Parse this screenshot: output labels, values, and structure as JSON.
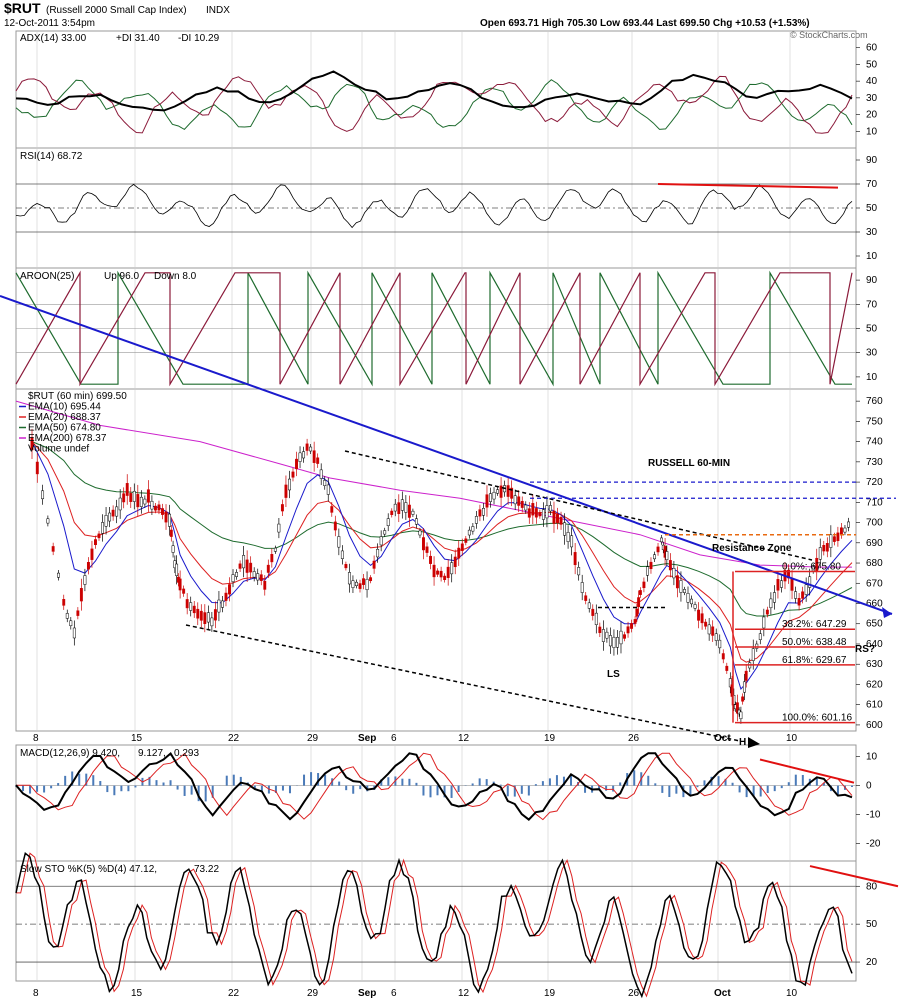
{
  "header": {
    "symbol": "$RUT",
    "name": "(Russell 2000 Small Cap Index)",
    "exchange": "INDX",
    "datetime": "12-Oct-2011 3:54pm",
    "ohlc": "Open 693.71  High 705.30  Low 693.44  Last 699.50  Chg +10.53 (+1.53%)",
    "watermark": "© StockCharts.com"
  },
  "colors": {
    "adx": "#000000",
    "plus_di": "#1e6b2e",
    "minus_di": "#8b1a3a",
    "ema10": "#1a1acc",
    "ema20": "#dd2222",
    "ema50": "#1e6b2e",
    "ema200": "#cc22cc",
    "trend": "#1a1acc",
    "fib": "#dd2222",
    "resistance": "#e86a10",
    "macd_hist": "#4a7ab8",
    "signal": "#dd2222"
  },
  "x_axis": {
    "labels": [
      "8",
      "15",
      "22",
      "29",
      "Sep",
      "6",
      "12",
      "19",
      "26",
      "Oct",
      "10"
    ],
    "bold": [
      "Sep",
      "Oct"
    ]
  },
  "panels": {
    "adx": {
      "legend": [
        "ADX(14) 33.00",
        "+DI 31.40",
        "-DI 10.29"
      ],
      "ticks": [
        "60",
        "50",
        "40",
        "30",
        "20",
        "10"
      ]
    },
    "rsi": {
      "legend": "RSI(14) 68.72",
      "ticks": [
        "90",
        "70",
        "50",
        "30",
        "10"
      ]
    },
    "aroon": {
      "legend": [
        "AROON(25)",
        "Up 96.0",
        "Down 8.0"
      ],
      "ticks": [
        "90",
        "70",
        "50",
        "30",
        "10"
      ]
    },
    "price": {
      "legend": [
        "$RUT (60 min) 699.50",
        "EMA(10) 695.44",
        "EMA(20) 688.37",
        "EMA(50) 674.80",
        "EMA(200) 678.37",
        "Volume undef"
      ],
      "ticks": [
        "760",
        "750",
        "740",
        "730",
        "720",
        "710",
        "700",
        "690",
        "680",
        "670",
        "660",
        "650",
        "640",
        "630",
        "620",
        "610",
        "600"
      ],
      "annotations": {
        "title": "RUSSELL 60-MIN",
        "resistance": "Resistance Zone",
        "ls": "LS",
        "h": "H",
        "rs": "RS?"
      },
      "fib": [
        "0.0%: 675.80",
        "38.2%: 647.29",
        "50.0%: 638.48",
        "61.8%: 629.67",
        "100.0%: 601.16"
      ]
    },
    "macd": {
      "legend": [
        "MACD(12,26,9) 9.420,",
        "9.127,",
        "0.293"
      ],
      "ticks": [
        "10",
        "0",
        "-10",
        "-20"
      ]
    },
    "sto": {
      "legend": [
        "Slow STO %K(5) %D(4) 47.12,",
        "73.22"
      ],
      "ticks": [
        "80",
        "50",
        "20"
      ]
    }
  },
  "chart_data": {
    "type": "line",
    "title": "RUSSELL 60-MIN",
    "x_labels": [
      "8",
      "15",
      "22",
      "29",
      "Sep",
      "6",
      "12",
      "19",
      "26",
      "Oct",
      "10"
    ],
    "price_range": [
      600,
      760
    ],
    "series": [
      {
        "name": "$RUT (60 min)",
        "last": 699.5
      },
      {
        "name": "EMA(10)",
        "last": 695.44
      },
      {
        "name": "EMA(20)",
        "last": 688.37
      },
      {
        "name": "EMA(50)",
        "last": 674.8
      },
      {
        "name": "EMA(200)",
        "last": 678.37
      }
    ],
    "close_path": [
      [
        0,
        740
      ],
      [
        3,
        700
      ],
      [
        6,
        660
      ],
      [
        8,
        645
      ],
      [
        10,
        672
      ],
      [
        12,
        690
      ],
      [
        14,
        702
      ],
      [
        16,
        705
      ],
      [
        18,
        715
      ],
      [
        20,
        710
      ],
      [
        22,
        712
      ],
      [
        24,
        706
      ],
      [
        26,
        700
      ],
      [
        27,
        680
      ],
      [
        28,
        668
      ],
      [
        30,
        658
      ],
      [
        32,
        655
      ],
      [
        34,
        652
      ],
      [
        36,
        660
      ],
      [
        38,
        672
      ],
      [
        40,
        680
      ],
      [
        42,
        675
      ],
      [
        44,
        670
      ],
      [
        46,
        688
      ],
      [
        48,
        715
      ],
      [
        50,
        728
      ],
      [
        52,
        738
      ],
      [
        54,
        730
      ],
      [
        56,
        715
      ],
      [
        58,
        690
      ],
      [
        60,
        672
      ],
      [
        62,
        668
      ],
      [
        64,
        672
      ],
      [
        66,
        690
      ],
      [
        68,
        705
      ],
      [
        70,
        710
      ],
      [
        72,
        705
      ],
      [
        74,
        690
      ],
      [
        76,
        676
      ],
      [
        78,
        672
      ],
      [
        80,
        680
      ],
      [
        82,
        692
      ],
      [
        84,
        700
      ],
      [
        86,
        710
      ],
      [
        88,
        716
      ],
      [
        90,
        716
      ],
      [
        92,
        710
      ],
      [
        94,
        706
      ],
      [
        96,
        705
      ],
      [
        98,
        706
      ],
      [
        100,
        700
      ],
      [
        102,
        690
      ],
      [
        104,
        668
      ],
      [
        106,
        655
      ],
      [
        108,
        645
      ],
      [
        110,
        640
      ],
      [
        112,
        645
      ],
      [
        114,
        650
      ],
      [
        115,
        664
      ],
      [
        117,
        680
      ],
      [
        119,
        690
      ],
      [
        120,
        684
      ],
      [
        122,
        672
      ],
      [
        124,
        662
      ],
      [
        126,
        655
      ],
      [
        128,
        648
      ],
      [
        130,
        640
      ],
      [
        132,
        620
      ],
      [
        133,
        608
      ],
      [
        134,
        605
      ],
      [
        135,
        625
      ],
      [
        137,
        640
      ],
      [
        139,
        655
      ],
      [
        141,
        668
      ],
      [
        143,
        675
      ],
      [
        145,
        660
      ],
      [
        147,
        672
      ],
      [
        149,
        684
      ],
      [
        151,
        690
      ],
      [
        153,
        695
      ],
      [
        155,
        699.5
      ]
    ],
    "fib_levels": [
      {
        "label": "0.0%",
        "value": 675.8
      },
      {
        "label": "38.2%",
        "value": 647.29
      },
      {
        "label": "50.0%",
        "value": 638.48
      },
      {
        "label": "61.8%",
        "value": 629.67
      },
      {
        "label": "100.0%",
        "value": 601.16
      }
    ],
    "indicators": {
      "adx": {
        "ADX": 33.0,
        "+DI": 31.4,
        "-DI": 10.29
      },
      "rsi": 68.72,
      "aroon": {
        "Up": 96.0,
        "Down": 8.0
      },
      "macd": {
        "MACD": 9.42,
        "signal": 9.127,
        "histogram": 0.293
      },
      "slow_sto": {
        "%K": 47.12,
        "%D": 73.22
      }
    }
  }
}
